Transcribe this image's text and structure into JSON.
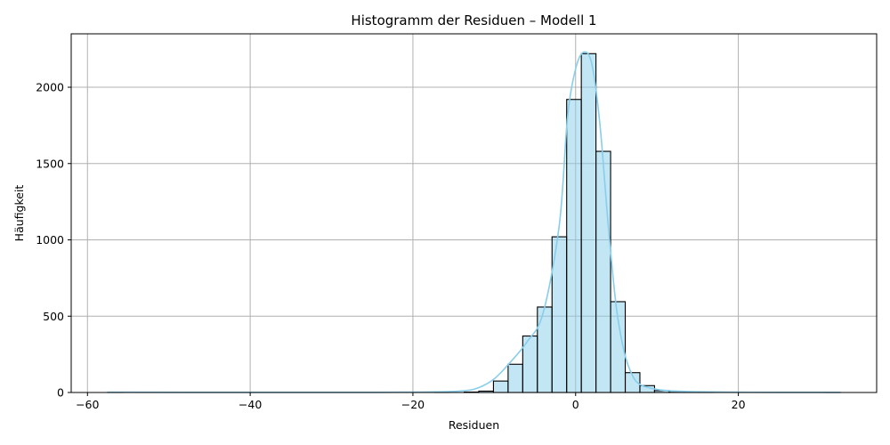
{
  "chart_data": {
    "type": "bar",
    "subtype": "histogram",
    "title": "Histogramm der Residuen – Modell 1",
    "xlabel": "Residuen",
    "ylabel": "Häufigkeit",
    "xlim": [
      -62,
      37
    ],
    "ylim": [
      0,
      2350
    ],
    "xticks": [
      -60,
      -40,
      -20,
      0,
      20
    ],
    "xtick_labels": [
      "−60",
      "−40",
      "−20",
      "0",
      "20"
    ],
    "yticks": [
      0,
      500,
      1000,
      1500,
      2000
    ],
    "ytick_labels": [
      "0",
      "500",
      "1000",
      "1500",
      "2000"
    ],
    "grid": true,
    "bar_color": "#87ceeb",
    "bar_edge_color": "#000000",
    "kde_color": "#87ceeb",
    "bins": [
      {
        "x0": -57.5,
        "x1": -55.7,
        "count": 1
      },
      {
        "x0": -17.3,
        "x1": -15.5,
        "count": 1
      },
      {
        "x0": -13.7,
        "x1": -11.9,
        "count": 3
      },
      {
        "x0": -11.9,
        "x1": -10.1,
        "count": 9
      },
      {
        "x0": -10.1,
        "x1": -8.3,
        "count": 75
      },
      {
        "x0": -8.3,
        "x1": -6.5,
        "count": 185
      },
      {
        "x0": -6.5,
        "x1": -4.7,
        "count": 370
      },
      {
        "x0": -4.7,
        "x1": -2.9,
        "count": 560
      },
      {
        "x0": -2.9,
        "x1": -1.1,
        "count": 1020
      },
      {
        "x0": -1.1,
        "x1": 0.7,
        "count": 1920
      },
      {
        "x0": 0.7,
        "x1": 2.5,
        "count": 2220
      },
      {
        "x0": 2.5,
        "x1": 4.3,
        "count": 1580
      },
      {
        "x0": 4.3,
        "x1": 6.1,
        "count": 595
      },
      {
        "x0": 6.1,
        "x1": 7.9,
        "count": 130
      },
      {
        "x0": 7.9,
        "x1": 9.7,
        "count": 45
      },
      {
        "x0": 9.7,
        "x1": 11.5,
        "count": 12
      },
      {
        "x0": 11.5,
        "x1": 13.3,
        "count": 8
      },
      {
        "x0": 13.3,
        "x1": 15.1,
        "count": 4
      },
      {
        "x0": 15.1,
        "x1": 16.9,
        "count": 2
      },
      {
        "x0": 30.7,
        "x1": 32.5,
        "count": 1
      }
    ],
    "kde": {
      "x": [
        -57.5,
        -40,
        -25,
        -18,
        -14,
        -12,
        -10,
        -8,
        -6,
        -4,
        -2,
        -1,
        0,
        1,
        2,
        3,
        4,
        5,
        6,
        7,
        8,
        10,
        12,
        15,
        20,
        25,
        32.5
      ],
      "y": [
        2,
        1,
        1,
        3,
        10,
        30,
        90,
        200,
        330,
        520,
        1100,
        1800,
        2120,
        2230,
        2150,
        1750,
        1100,
        560,
        260,
        110,
        50,
        20,
        10,
        5,
        2,
        1,
        1
      ]
    }
  }
}
